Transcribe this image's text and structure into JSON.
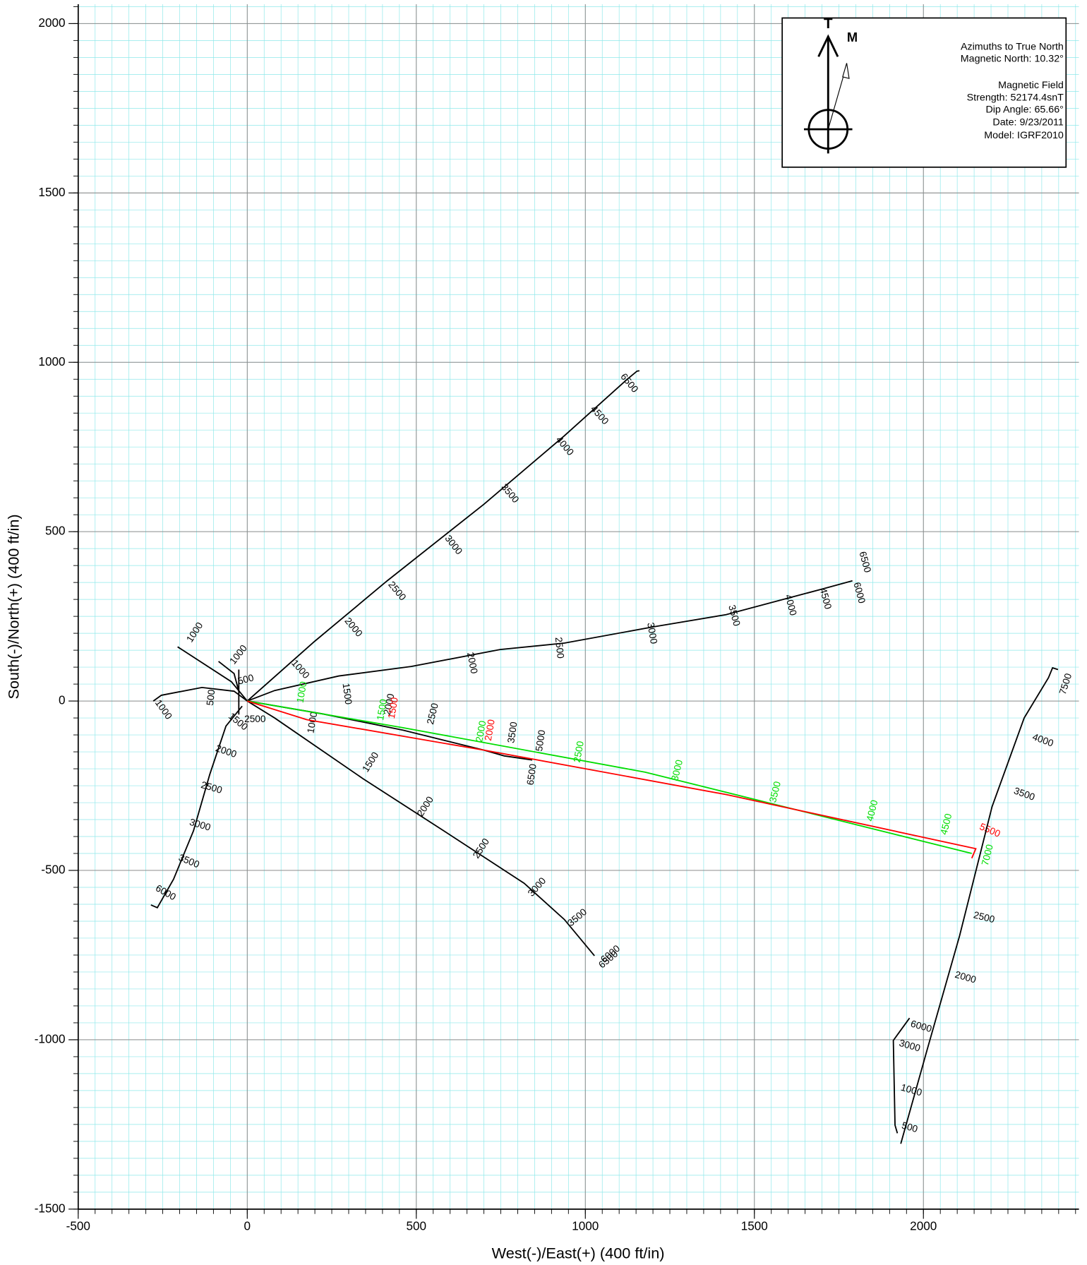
{
  "chart_data": {
    "type": "line",
    "x_label": "West(-)/East(+) (400 ft/in)",
    "y_label": "South(-)/North(+) (400 ft/in)",
    "xlim": [
      -500,
      2460
    ],
    "ylim": [
      -1500,
      2057
    ],
    "xticks": [
      -500,
      0,
      500,
      1000,
      1500,
      2000
    ],
    "yticks": [
      -1500,
      -1000,
      -500,
      0,
      500,
      1000,
      1500,
      2000
    ],
    "grid": true,
    "minor_grid_step": 50,
    "annotation_box": {
      "true_label": "T",
      "magnetic_label": "M",
      "lines": [
        "Azimuths to True North",
        "Magnetic North: 10.32°",
        "Magnetic Field",
        "Strength: 52174.4snT",
        "Dip Angle: 65.66°",
        "Date:  9/23/2011",
        "Model: IGRF2010"
      ]
    },
    "series": [
      {
        "color": "#000000",
        "x": [
          0,
          199,
          414,
          700,
          938,
          1124,
          1153,
          1160
        ],
        "values": [
          0,
          176,
          355,
          581,
          783,
          950,
          974,
          975
        ],
        "labels": [
          {
            "value": 2000,
            "x": 313,
            "y": 217
          },
          {
            "value": 2500,
            "x": 442,
            "y": 324
          },
          {
            "value": 3000,
            "x": 609,
            "y": 460
          },
          {
            "value": 3500,
            "x": 776,
            "y": 612
          },
          {
            "value": 4000,
            "x": 938,
            "y": 752
          },
          {
            "value": 4500,
            "x": 1041,
            "y": 843
          },
          {
            "value": 6500,
            "x": 1129,
            "y": 938
          },
          {
            "value": 1000,
            "x": 156,
            "y": 93
          }
        ]
      },
      {
        "color": "#000000",
        "x": [
          0,
          81,
          271,
          485,
          748,
          938,
          1201,
          1416,
          1702,
          1790
        ],
        "values": [
          0,
          31,
          74,
          102,
          152,
          171,
          219,
          255,
          331,
          355
        ],
        "labels": [
          {
            "value": 1500,
            "x": 294,
            "y": 21
          },
          {
            "value": 2000,
            "x": 664,
            "y": 112
          },
          {
            "value": 2500,
            "x": 922,
            "y": 157
          },
          {
            "value": 3000,
            "x": 1196,
            "y": 200
          },
          {
            "value": 3500,
            "x": 1439,
            "y": 252
          },
          {
            "value": 4000,
            "x": 1606,
            "y": 283
          },
          {
            "value": 4500,
            "x": 1709,
            "y": 302
          },
          {
            "value": 6000,
            "x": 1809,
            "y": 319
          },
          {
            "value": 6500,
            "x": 1826,
            "y": 410
          }
        ]
      },
      {
        "color": "#000000",
        "x": [
          0,
          223,
          461,
          700,
          760,
          843
        ],
        "values": [
          0,
          -38,
          -86,
          -145,
          -162,
          -174
        ],
        "labels": [
          {
            "value": 1000,
            "x": 194,
            "y": -64
          },
          {
            "value": 2000,
            "x": 421,
            "y": -10
          },
          {
            "value": 2500,
            "x": 550,
            "y": -38
          },
          {
            "value": 3500,
            "x": 786,
            "y": -93
          },
          {
            "value": 5000,
            "x": 869,
            "y": -117
          },
          {
            "value": 6500,
            "x": 843,
            "y": -217
          }
        ]
      },
      {
        "color": "#000000",
        "x": [
          0,
          81,
          342,
          581,
          819,
          938,
          1027
        ],
        "values": [
          0,
          -50,
          -229,
          -383,
          -538,
          -645,
          -752
        ],
        "labels": [
          {
            "value": 1500,
            "x": 366,
            "y": -181
          },
          {
            "value": 2000,
            "x": 528,
            "y": -312
          },
          {
            "value": 2500,
            "x": 693,
            "y": -436
          },
          {
            "value": 3000,
            "x": 858,
            "y": -550
          },
          {
            "value": 3500,
            "x": 977,
            "y": -640
          },
          {
            "value": 6000,
            "x": 1075,
            "y": -748
          },
          {
            "value": 6500,
            "x": 1069,
            "y": -764
          }
        ]
      },
      {
        "color": "#000000",
        "x": [
          -15,
          -63,
          -111,
          -159,
          -218,
          -266,
          -285
        ],
        "values": [
          -15,
          -74,
          -217,
          -383,
          -526,
          -610,
          -602
        ],
        "labels": [
          {
            "value": 1500,
            "x": -28,
            "y": -62
          },
          {
            "value": 2000,
            "x": -63,
            "y": -150
          },
          {
            "value": 2500,
            "x": -106,
            "y": -257
          },
          {
            "value": 3000,
            "x": -140,
            "y": -367
          },
          {
            "value": 3500,
            "x": -173,
            "y": -474
          },
          {
            "value": 6000,
            "x": -242,
            "y": -567
          }
        ]
      },
      {
        "color": "#000000",
        "x": [
          0,
          -39,
          -134,
          -254,
          -278
        ],
        "values": [
          0,
          29,
          40,
          17,
          0
        ],
        "labels": [
          {
            "value": 500,
            "x": -106,
            "y": 10
          },
          {
            "value": 1000,
            "x": -249,
            "y": -26
          }
        ]
      },
      {
        "color": "#000000",
        "x": [
          0,
          -47,
          -206
        ],
        "values": [
          0,
          57,
          160
        ],
        "labels": [
          {
            "value": 1000,
            "x": -154,
            "y": 202
          }
        ]
      },
      {
        "color": "#000000",
        "x": [
          -25,
          -39,
          -85
        ],
        "values": [
          29,
          81,
          117
        ],
        "labels": [
          {
            "value": 1000,
            "x": -25,
            "y": 136
          },
          {
            "value": 500,
            "x": -4,
            "y": 62
          }
        ]
      },
      {
        "color": "#000000",
        "x": [
          -25,
          -25
        ],
        "values": [
          93,
          -40
        ],
        "labels": [
          {
            "value": 2500,
            "x": 23,
            "y": -55
          }
        ]
      },
      {
        "color": "#00dd00",
        "x": [
          0,
          462,
          1177,
          2143
        ],
        "values": [
          0,
          -79,
          -210,
          -450
        ],
        "labels": [
          {
            "value": 1000,
            "x": 163,
            "y": 26
          },
          {
            "value": 1500,
            "x": 400,
            "y": -26
          },
          {
            "value": 2000,
            "x": 693,
            "y": -90
          },
          {
            "value": 2500,
            "x": 982,
            "y": -150
          },
          {
            "value": 3000,
            "x": 1273,
            "y": -205
          },
          {
            "value": 3500,
            "x": 1563,
            "y": -269
          },
          {
            "value": 4000,
            "x": 1850,
            "y": -324
          },
          {
            "value": 4500,
            "x": 2069,
            "y": -364
          },
          {
            "value": 7000,
            "x": 2191,
            "y": -455
          }
        ]
      },
      {
        "color": "#ff0000",
        "x": [
          0,
          176,
          700,
          1416,
          2155,
          2143
        ],
        "values": [
          0,
          -55,
          -145,
          -276,
          -436,
          -464
        ],
        "labels": [
          {
            "value": 1500,
            "x": 433,
            "y": -21
          },
          {
            "value": 2000,
            "x": 719,
            "y": -86
          },
          {
            "value": 5500,
            "x": 2196,
            "y": -383
          }
        ]
      },
      {
        "color": "#000000",
        "x": [
          1933,
          2012,
          2107,
          2203,
          2298,
          2370,
          2382,
          2398
        ],
        "values": [
          -1307,
          -1026,
          -693,
          -312,
          -50,
          69,
          98,
          93
        ],
        "labels": [
          {
            "value": 500,
            "x": 1959,
            "y": -1260
          },
          {
            "value": 1000,
            "x": 1964,
            "y": -1150
          },
          {
            "value": 3000,
            "x": 1959,
            "y": -1019
          },
          {
            "value": 6000,
            "x": 1993,
            "y": -962
          },
          {
            "value": 2000,
            "x": 2124,
            "y": -817
          },
          {
            "value": 2500,
            "x": 2179,
            "y": -640
          },
          {
            "value": 3500,
            "x": 2298,
            "y": -276
          },
          {
            "value": 4000,
            "x": 2353,
            "y": -117
          },
          {
            "value": 7500,
            "x": 2422,
            "y": 50
          }
        ]
      },
      {
        "color": "#000000",
        "x": [
          1959,
          1911,
          1916,
          1923
        ],
        "values": [
          -936,
          -1002,
          -1252,
          -1276
        ],
        "labels": []
      }
    ]
  }
}
